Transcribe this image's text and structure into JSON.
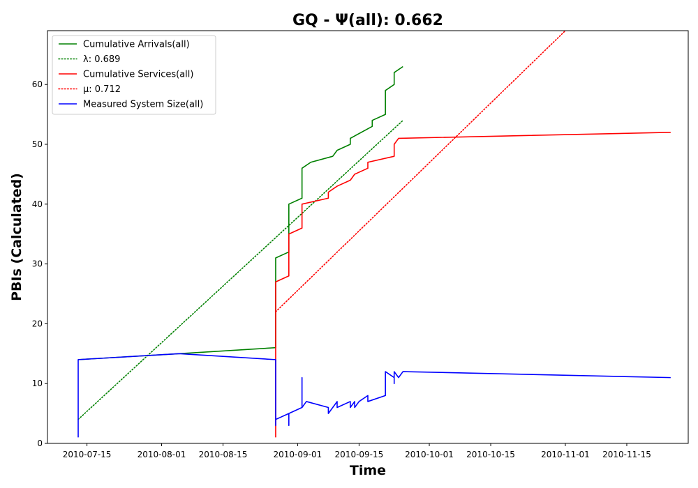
{
  "chart_data": {
    "type": "line",
    "title": "GQ -  Ψ(all): 0.662",
    "xlabel": "Time",
    "ylabel": "PBIs (Calculated)",
    "x_axis_type": "date",
    "xlim": [
      "2010-07-06",
      "2010-11-29"
    ],
    "ylim": [
      0,
      69
    ],
    "x_ticks": [
      "2010-07-15",
      "2010-08-01",
      "2010-08-15",
      "2010-09-01",
      "2010-09-15",
      "2010-10-01",
      "2010-10-15",
      "2010-11-01",
      "2010-11-15"
    ],
    "y_ticks": [
      0,
      10,
      20,
      30,
      40,
      50,
      60
    ],
    "grid": false,
    "legend_position": "top-left",
    "series": [
      {
        "name": "Cumulative Arrivals(all)",
        "style": "solid",
        "color": "#008000",
        "points": [
          [
            "2010-07-13",
            14
          ],
          [
            "2010-08-05",
            15
          ],
          [
            "2010-08-27",
            16
          ],
          [
            "2010-08-27",
            31
          ],
          [
            "2010-08-30",
            32
          ],
          [
            "2010-08-30",
            40
          ],
          [
            "2010-09-02",
            41
          ],
          [
            "2010-09-02",
            46
          ],
          [
            "2010-09-04",
            47
          ],
          [
            "2010-09-09",
            48
          ],
          [
            "2010-09-10",
            49
          ],
          [
            "2010-09-13",
            50
          ],
          [
            "2010-09-13",
            51
          ],
          [
            "2010-09-18",
            53
          ],
          [
            "2010-09-18",
            54
          ],
          [
            "2010-09-21",
            55
          ],
          [
            "2010-09-21",
            59
          ],
          [
            "2010-09-23",
            60
          ],
          [
            "2010-09-23",
            62
          ],
          [
            "2010-09-25",
            63
          ]
        ]
      },
      {
        "name": "λ: 0.689",
        "style": "dotted",
        "color": "#008000",
        "points": [
          [
            "2010-07-13",
            4
          ],
          [
            "2010-09-25",
            54
          ]
        ]
      },
      {
        "name": "Cumulative Services(all)",
        "style": "solid",
        "color": "#ff0000",
        "points": [
          [
            "2010-08-27",
            1
          ],
          [
            "2010-08-27",
            27
          ],
          [
            "2010-08-30",
            28
          ],
          [
            "2010-08-30",
            35
          ],
          [
            "2010-09-02",
            36
          ],
          [
            "2010-09-02",
            40
          ],
          [
            "2010-09-08",
            41
          ],
          [
            "2010-09-08",
            42
          ],
          [
            "2010-09-10",
            43
          ],
          [
            "2010-09-13",
            44
          ],
          [
            "2010-09-14",
            45
          ],
          [
            "2010-09-17",
            46
          ],
          [
            "2010-09-17",
            47
          ],
          [
            "2010-09-23",
            48
          ],
          [
            "2010-09-23",
            50
          ],
          [
            "2010-09-24",
            51
          ],
          [
            "2010-11-25",
            52
          ]
        ]
      },
      {
        "name": "μ: 0.712",
        "style": "dotted",
        "color": "#ff0000",
        "points": [
          [
            "2010-08-27",
            22
          ],
          [
            "2010-11-01",
            69
          ]
        ]
      },
      {
        "name": "Measured System Size(all)",
        "style": "solid",
        "color": "#0000ff",
        "points": [
          [
            "2010-07-13",
            1
          ],
          [
            "2010-07-13",
            14
          ],
          [
            "2010-08-05",
            15
          ],
          [
            "2010-08-27",
            14
          ],
          [
            "2010-08-27",
            3
          ],
          [
            "2010-08-27",
            7
          ],
          [
            "2010-08-27",
            4
          ],
          [
            "2010-08-30",
            5
          ],
          [
            "2010-08-30",
            3
          ],
          [
            "2010-08-30",
            5
          ],
          [
            "2010-09-02",
            6
          ],
          [
            "2010-09-02",
            11
          ],
          [
            "2010-09-02",
            6
          ],
          [
            "2010-09-03",
            7
          ],
          [
            "2010-09-08",
            6
          ],
          [
            "2010-09-08",
            5
          ],
          [
            "2010-09-10",
            7
          ],
          [
            "2010-09-10",
            6
          ],
          [
            "2010-09-13",
            7
          ],
          [
            "2010-09-13",
            6
          ],
          [
            "2010-09-14",
            7
          ],
          [
            "2010-09-14",
            6
          ],
          [
            "2010-09-15",
            7
          ],
          [
            "2010-09-17",
            8
          ],
          [
            "2010-09-17",
            7
          ],
          [
            "2010-09-21",
            8
          ],
          [
            "2010-09-21",
            12
          ],
          [
            "2010-09-23",
            11
          ],
          [
            "2010-09-23",
            10
          ],
          [
            "2010-09-23",
            12
          ],
          [
            "2010-09-24",
            11
          ],
          [
            "2010-09-25",
            12
          ],
          [
            "2010-11-25",
            11
          ]
        ]
      }
    ]
  }
}
